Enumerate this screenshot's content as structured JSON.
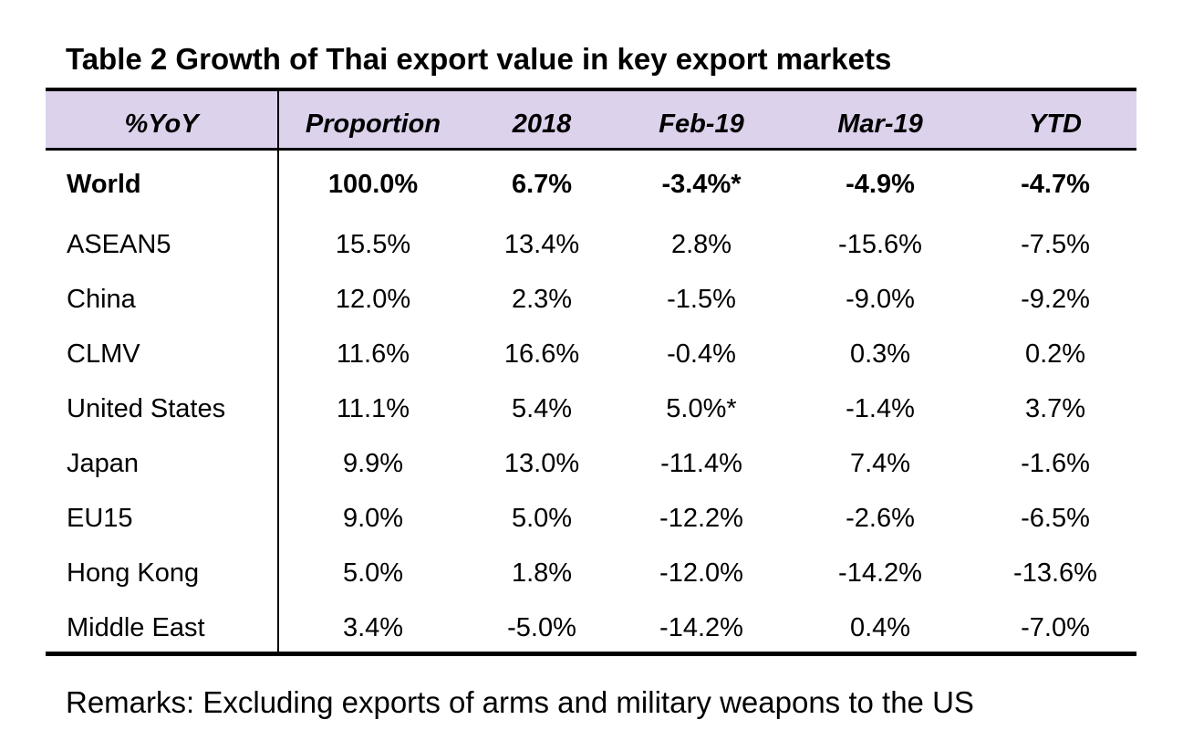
{
  "title": "Table 2 Growth of Thai export value in key export markets",
  "columns": [
    "%YoY",
    "Proportion",
    "2018",
    "Feb-19",
    "Mar-19",
    "YTD"
  ],
  "rows": [
    [
      "World",
      "100.0%",
      "6.7%",
      "-3.4%*",
      "-4.9%",
      "-4.7%"
    ],
    [
      "ASEAN5",
      "15.5%",
      "13.4%",
      "2.8%",
      "-15.6%",
      "-7.5%"
    ],
    [
      "China",
      "12.0%",
      "2.3%",
      "-1.5%",
      "-9.0%",
      "-9.2%"
    ],
    [
      "CLMV",
      "11.6%",
      "16.6%",
      "-0.4%",
      "0.3%",
      "0.2%"
    ],
    [
      "United States",
      "11.1%",
      "5.4%",
      "5.0%*",
      "-1.4%",
      "3.7%"
    ],
    [
      "Japan",
      "9.9%",
      "13.0%",
      "-11.4%",
      "7.4%",
      "-1.6%"
    ],
    [
      "EU15",
      "9.0%",
      "5.0%",
      "-12.2%",
      "-2.6%",
      "-6.5%"
    ],
    [
      "Hong Kong",
      "5.0%",
      "1.8%",
      "-12.0%",
      "-14.2%",
      "-13.6%"
    ],
    [
      "Middle East",
      "3.4%",
      "-5.0%",
      "-14.2%",
      "0.4%",
      "-7.0%"
    ]
  ],
  "remarks": "Remarks: Excluding exports of arms and military weapons to the US",
  "colors": {
    "header_background": "#dcd2ec",
    "rule": "#000000",
    "text": "#000000"
  }
}
